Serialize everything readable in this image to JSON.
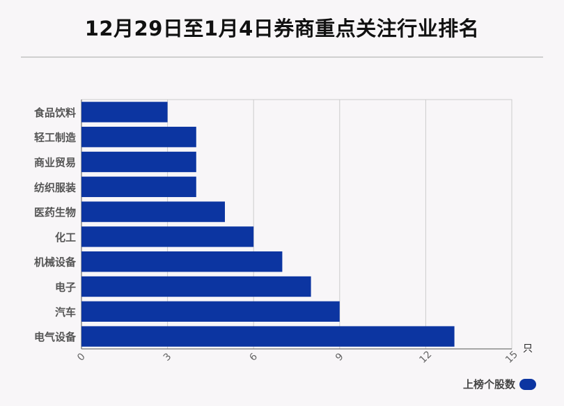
{
  "title": "12月29日至1月4日券商重点关注行业排名",
  "chart_data": {
    "type": "bar",
    "orientation": "horizontal",
    "title": "12月29日至1月4日券商重点关注行业排名",
    "categories": [
      "食品饮料",
      "轻工制造",
      "商业贸易",
      "纺织服装",
      "医药生物",
      "化工",
      "机械设备",
      "电子",
      "汽车",
      "电气设备"
    ],
    "series": [
      {
        "name": "上榜个股数",
        "values": [
          3,
          4,
          4,
          4,
          5,
          6,
          7,
          8,
          9,
          13
        ],
        "color": "#0c35a1"
      }
    ],
    "xlim": [
      0,
      15
    ],
    "xticks": [
      "0",
      "3",
      "6",
      "9",
      "12",
      "15"
    ],
    "x_unit": "只",
    "grid": true,
    "legend_position": "bottom-right"
  }
}
